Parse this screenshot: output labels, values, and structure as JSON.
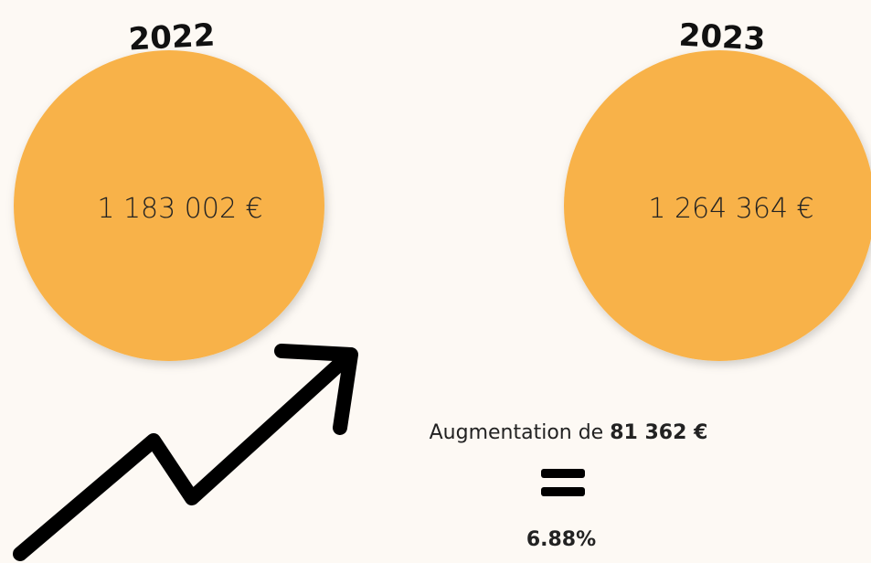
{
  "left": {
    "year": "2022",
    "amount": "1 183 002 €"
  },
  "right": {
    "year": "2023",
    "amount": "1 264 364 €"
  },
  "summary": {
    "prefix": "Augmentation de",
    "difference": "81 362 €",
    "percent": "6.88%"
  }
}
